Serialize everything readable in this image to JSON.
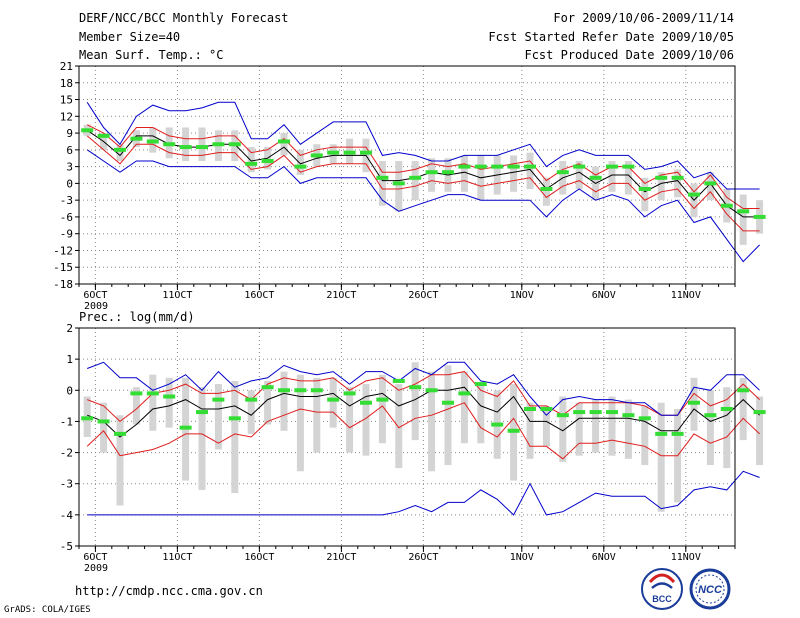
{
  "header": {
    "title": "DERF/NCC/BCC Monthly Forecast",
    "member": "Member Size=40",
    "variable": "Mean Surf. Temp.: °C",
    "period": "For 2009/10/06-2009/11/14",
    "start_ref": "Fcst Started Refer Date 2009/10/05",
    "produced": "Fcst Produced Date 2009/10/06"
  },
  "footer": {
    "url": "http://cmdp.ncc.cma.gov.cn",
    "credit": "GrADS: COLA/IGES",
    "logo1_text": "BCC",
    "logo2_text": "NCC"
  },
  "colors": {
    "ens_mean": "#000000",
    "sd_band": "#e01e1e",
    "minmax": "#0000cc",
    "observed": "#33dd33",
    "box": "#d4d4d4",
    "grid": "#8a8a8a"
  },
  "chart_data": [
    {
      "type": "line",
      "title": "Mean Surf. Temp.: °C",
      "x_labels": [
        "6OCT",
        "11OCT",
        "16OCT",
        "21OCT",
        "26OCT",
        "1NOV",
        "6NOV",
        "11NOV"
      ],
      "x_label_day": [
        1,
        6,
        11,
        16,
        21,
        27,
        32,
        37
      ],
      "year_label": "2009",
      "xlim": [
        0,
        40
      ],
      "ylim": [
        -18,
        21
      ],
      "yticks": [
        -18,
        -15,
        -12,
        -9,
        -6,
        -3,
        0,
        3,
        6,
        9,
        12,
        15,
        18,
        21
      ],
      "series": [
        {
          "name": "ensemble mean",
          "values": [
            9.5,
            7.5,
            5,
            8.5,
            8.5,
            7,
            6.5,
            6.5,
            7,
            7,
            4,
            4.5,
            6.5,
            3.5,
            4.5,
            5,
            5,
            5,
            0.5,
            0.5,
            1,
            2,
            1.5,
            2,
            1,
            1.5,
            2,
            2.5,
            -1,
            1,
            2,
            0,
            1.5,
            1.5,
            -1.5,
            0,
            0.5,
            -3,
            0,
            -4,
            -6,
            -6
          ]
        },
        {
          "name": "mean + sd",
          "values": [
            10.5,
            9,
            6.5,
            10,
            10,
            8.5,
            8,
            8,
            8.5,
            8.5,
            5.5,
            6,
            8,
            5,
            6,
            6.5,
            6.5,
            6.5,
            2,
            2,
            2.5,
            3.5,
            3,
            3.5,
            2.5,
            3,
            3.5,
            4,
            0.5,
            2.5,
            3.5,
            1.5,
            3,
            3,
            0,
            1.5,
            2,
            -1.5,
            1.5,
            -2.5,
            -4.5,
            -4.5
          ]
        },
        {
          "name": "mean - sd",
          "values": [
            8.5,
            6,
            3.5,
            7,
            7,
            5.5,
            5,
            5,
            5.5,
            5.5,
            2.5,
            3,
            5,
            2,
            3,
            3.5,
            3.5,
            3.5,
            -1,
            -1,
            -0.5,
            0.5,
            0,
            0.5,
            -0.5,
            0,
            0.5,
            1,
            -2.5,
            -0.5,
            0.5,
            -1.5,
            0,
            0,
            -3,
            -1.5,
            -1,
            -4.5,
            -1.5,
            -5.5,
            -8.5,
            -8.5
          ]
        },
        {
          "name": "max",
          "values": [
            14.5,
            10,
            7,
            12,
            14,
            13,
            13,
            13.5,
            14.5,
            14.5,
            8,
            8,
            10.5,
            7,
            9,
            11,
            11,
            11,
            5,
            5.5,
            5,
            4,
            4,
            5,
            5,
            5,
            6,
            7,
            3,
            5,
            6,
            5,
            5,
            5,
            2.5,
            3,
            4,
            1,
            2,
            -1,
            -1,
            -1
          ]
        },
        {
          "name": "min",
          "values": [
            6,
            4,
            2,
            4,
            4,
            3,
            3,
            3,
            3,
            3,
            1,
            1,
            3,
            0,
            1,
            1,
            1,
            1,
            -3,
            -5,
            -4,
            -3,
            -2,
            -2,
            -3,
            -3,
            -3,
            -3,
            -6,
            -3,
            -1,
            -3,
            -2,
            -3,
            -6,
            -4,
            -3,
            -7,
            -6,
            -10,
            -14,
            -11
          ]
        }
      ],
      "observed": [
        9.5,
        8.5,
        6,
        8,
        7.5,
        7,
        6.5,
        6.5,
        7,
        7,
        3.5,
        4,
        7.5,
        3,
        5,
        5.5,
        5.5,
        5.5,
        1,
        0,
        1,
        2,
        2,
        3,
        3,
        3,
        3,
        3,
        -1,
        2,
        3,
        1,
        3,
        3,
        -1,
        1,
        1,
        -2,
        0,
        -4,
        -5,
        -6
      ],
      "box_hi": [
        10.5,
        9,
        7,
        9.5,
        10,
        10,
        10,
        10,
        9.5,
        9.5,
        6.5,
        6.5,
        9,
        6,
        7,
        7,
        8,
        8,
        4,
        4,
        4,
        4.5,
        4.5,
        5,
        5,
        5,
        5,
        5.5,
        1,
        4,
        4,
        3,
        4,
        4,
        1,
        2,
        2.5,
        0,
        2,
        -1,
        -2,
        -3
      ],
      "box_lo": [
        8.5,
        6,
        4,
        6.5,
        5.5,
        4.5,
        4,
        4,
        4,
        4,
        2,
        2.5,
        5,
        1.5,
        3,
        3.5,
        3.5,
        2,
        -4,
        -5,
        -3,
        -1.5,
        -1.5,
        -1.5,
        -3,
        -2,
        -1.5,
        -1,
        -4,
        -2,
        -1,
        -3,
        -1.5,
        -2,
        -5,
        -3,
        -2.5,
        -6,
        -3,
        -7,
        -11,
        -9
      ]
    },
    {
      "type": "line",
      "title": "Prec.: log(mm/d)",
      "x_labels": [
        "6OCT",
        "11OCT",
        "16OCT",
        "21OCT",
        "26OCT",
        "1NOV",
        "6NOV",
        "11NOV"
      ],
      "x_label_day": [
        1,
        6,
        11,
        16,
        21,
        27,
        32,
        37
      ],
      "year_label": "2009",
      "xlim": [
        0,
        40
      ],
      "ylim": [
        -5,
        2
      ],
      "yticks": [
        -5,
        -4,
        -3,
        -2,
        -1,
        0,
        1,
        2
      ],
      "series": [
        {
          "name": "ensemble mean",
          "values": [
            -0.8,
            -1,
            -1.5,
            -1.1,
            -0.6,
            -0.5,
            -0.3,
            -0.6,
            -0.6,
            -0.5,
            -0.8,
            -0.3,
            -0.1,
            -0.2,
            -0.2,
            -0.1,
            -0.5,
            -0.2,
            -0.1,
            -0.5,
            -0.3,
            0,
            0,
            0.1,
            -0.5,
            -0.7,
            -0.2,
            -1,
            -1,
            -1.3,
            -0.9,
            -0.9,
            -0.9,
            -0.9,
            -1,
            -1.3,
            -1.3,
            -0.6,
            -1,
            -0.8,
            -0.3,
            -0.8
          ]
        },
        {
          "name": "mean + sd",
          "values": [
            -0.3,
            -0.5,
            -1,
            -0.6,
            -0.1,
            0,
            0.2,
            -0.1,
            -0.1,
            0,
            -0.3,
            0.2,
            0.4,
            0.3,
            0.3,
            0.4,
            0,
            0.3,
            0.4,
            0,
            0.2,
            0.5,
            0.5,
            0.6,
            0,
            -0.2,
            0.3,
            -0.5,
            -0.5,
            -0.8,
            -0.4,
            -0.4,
            -0.4,
            -0.4,
            -0.5,
            -0.8,
            -0.8,
            -0.1,
            -0.5,
            -0.3,
            0.2,
            -0.3
          ]
        },
        {
          "name": "mean - sd",
          "values": [
            -1.8,
            -1.3,
            -2.1,
            -2,
            -1.9,
            -1.7,
            -1.4,
            -1.4,
            -1.7,
            -1.4,
            -1.5,
            -1,
            -0.8,
            -0.6,
            -0.7,
            -0.7,
            -1.2,
            -0.9,
            -0.5,
            -1.2,
            -0.9,
            -0.8,
            -0.6,
            -0.4,
            -1.2,
            -1.5,
            -0.9,
            -1.8,
            -1.8,
            -2.2,
            -1.7,
            -1.7,
            -1.6,
            -1.7,
            -1.8,
            -2.1,
            -2.1,
            -1.4,
            -1.7,
            -1.5,
            -0.9,
            -1.4
          ]
        },
        {
          "name": "max",
          "values": [
            0.7,
            0.9,
            0.4,
            0.4,
            0,
            0.2,
            0.5,
            0,
            0.6,
            0.1,
            0.3,
            0.4,
            0.8,
            0.6,
            0.5,
            0.6,
            0.2,
            0.6,
            0.6,
            0.3,
            0.7,
            0.5,
            0.9,
            0.9,
            0.3,
            0.2,
            0.5,
            -0.2,
            -0.8,
            -0.3,
            -0.2,
            -0.3,
            -0.3,
            -0.4,
            -0.4,
            -0.8,
            -0.8,
            0.1,
            0,
            0.5,
            0.5,
            0
          ]
        },
        {
          "name": "min",
          "values": [
            -4,
            -4,
            -4,
            -4,
            -4,
            -4,
            -4,
            -4,
            -4,
            -4,
            -4,
            -4,
            -4,
            -4,
            -4,
            -4,
            -4,
            -4,
            -4,
            -3.9,
            -3.7,
            -3.9,
            -3.6,
            -3.6,
            -3.2,
            -3.5,
            -4,
            -3,
            -4,
            -3.9,
            -3.6,
            -3.3,
            -3.4,
            -3.4,
            -3.4,
            -3.8,
            -3.7,
            -3.2,
            -3.1,
            -3.2,
            -2.6,
            -2.8
          ]
        }
      ],
      "observed": [
        -0.9,
        -1,
        -1.4,
        -0.1,
        -0.1,
        -0.2,
        -1.2,
        -0.7,
        -0.3,
        -0.9,
        -0.3,
        0.1,
        0,
        0,
        0,
        -0.3,
        -0.1,
        -0.4,
        -0.3,
        0.3,
        0.1,
        0,
        -0.4,
        -0.1,
        0.2,
        -1.1,
        -1.3,
        -0.6,
        -0.6,
        -0.8,
        -0.7,
        -0.7,
        -0.7,
        -0.8,
        -0.9,
        -1.4,
        -1.4,
        -0.4,
        -0.8,
        -0.6,
        0,
        -0.7
      ],
      "box_hi": [
        -0.2,
        -0.4,
        -0.8,
        0.1,
        0.5,
        0.4,
        0.4,
        0.1,
        0.2,
        0.3,
        0,
        0.3,
        0.6,
        0.5,
        0.4,
        0.4,
        0.1,
        0.2,
        0.5,
        0.2,
        0.9,
        0.6,
        0.8,
        0.6,
        0.2,
        0,
        0.2,
        -0.4,
        -0.5,
        -0.2,
        -0.4,
        -0.3,
        -0.2,
        -0.3,
        -0.5,
        -0.4,
        -0.6,
        0.4,
        0,
        0.1,
        0.4,
        -0.2
      ],
      "box_lo": [
        -1.5,
        -2,
        -3.7,
        -1.1,
        -1.3,
        -1.2,
        -2.9,
        -3.2,
        -1.9,
        -3.3,
        -1.4,
        -1.1,
        -1.3,
        -2.6,
        -2,
        -1.2,
        -2,
        -2.1,
        -1.7,
        -2.5,
        -1.6,
        -2.6,
        -2.4,
        -1.7,
        -1.7,
        -2.2,
        -2.9,
        -2.2,
        -1.8,
        -2.3,
        -2.1,
        -2,
        -2.1,
        -2.2,
        -2.4,
        -3.9,
        -3.6,
        -1.3,
        -2.4,
        -2.5,
        -1.6,
        -2.4
      ]
    }
  ]
}
